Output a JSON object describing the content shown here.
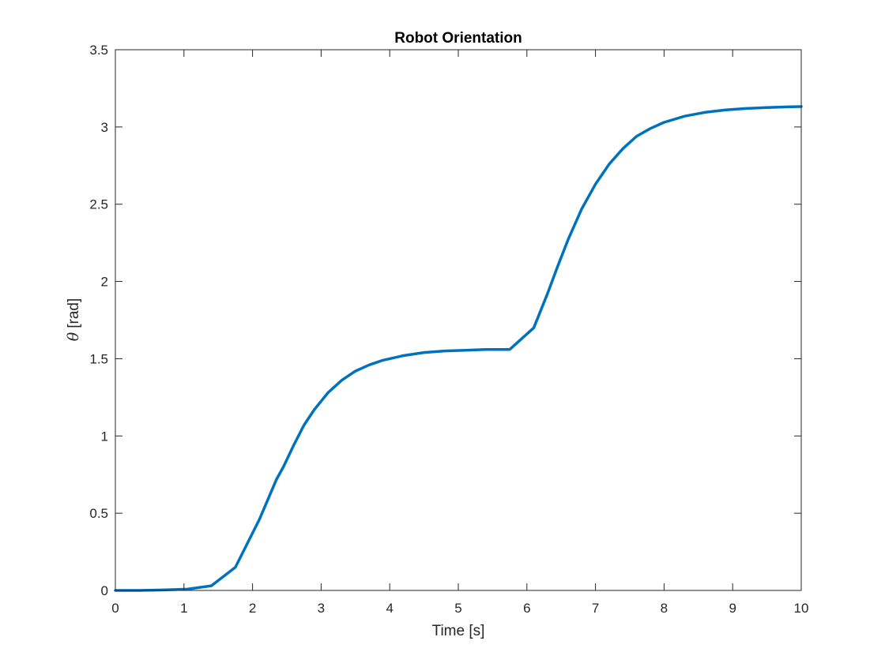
{
  "chart_data": {
    "type": "line",
    "title": "Robot Orientation",
    "xlabel": "Time [s]",
    "ylabel_symbol": "θ",
    "ylabel_unit": "[rad]",
    "xlim": [
      0,
      10
    ],
    "ylim": [
      0,
      3.5
    ],
    "xticks": [
      0,
      1,
      2,
      3,
      4,
      5,
      6,
      7,
      8,
      9,
      10
    ],
    "yticks": [
      0,
      0.5,
      1,
      1.5,
      2,
      2.5,
      3,
      3.5
    ],
    "grid": false,
    "line_color": "#0072BD",
    "series": [
      {
        "x": [
          0,
          0.35,
          0.7,
          1.05,
          1.4,
          1.75,
          2.1,
          2.35,
          2.45,
          2.6,
          2.75,
          2.9,
          3.1,
          3.3,
          3.5,
          3.7,
          3.9,
          4.2,
          4.5,
          4.8,
          5.1,
          5.4,
          5.75,
          6.1,
          6.3,
          6.45,
          6.6,
          6.8,
          7.0,
          7.2,
          7.4,
          7.6,
          7.8,
          8.0,
          8.3,
          8.6,
          8.9,
          9.2,
          9.5,
          9.8,
          10.0
        ],
        "y": [
          0,
          0,
          0.003,
          0.008,
          0.03,
          0.15,
          0.46,
          0.72,
          0.8,
          0.94,
          1.07,
          1.17,
          1.28,
          1.36,
          1.42,
          1.46,
          1.49,
          1.52,
          1.54,
          1.55,
          1.555,
          1.56,
          1.56,
          1.7,
          1.92,
          2.1,
          2.27,
          2.47,
          2.63,
          2.76,
          2.86,
          2.94,
          2.99,
          3.03,
          3.07,
          3.095,
          3.11,
          3.12,
          3.126,
          3.13,
          3.132
        ]
      }
    ]
  }
}
